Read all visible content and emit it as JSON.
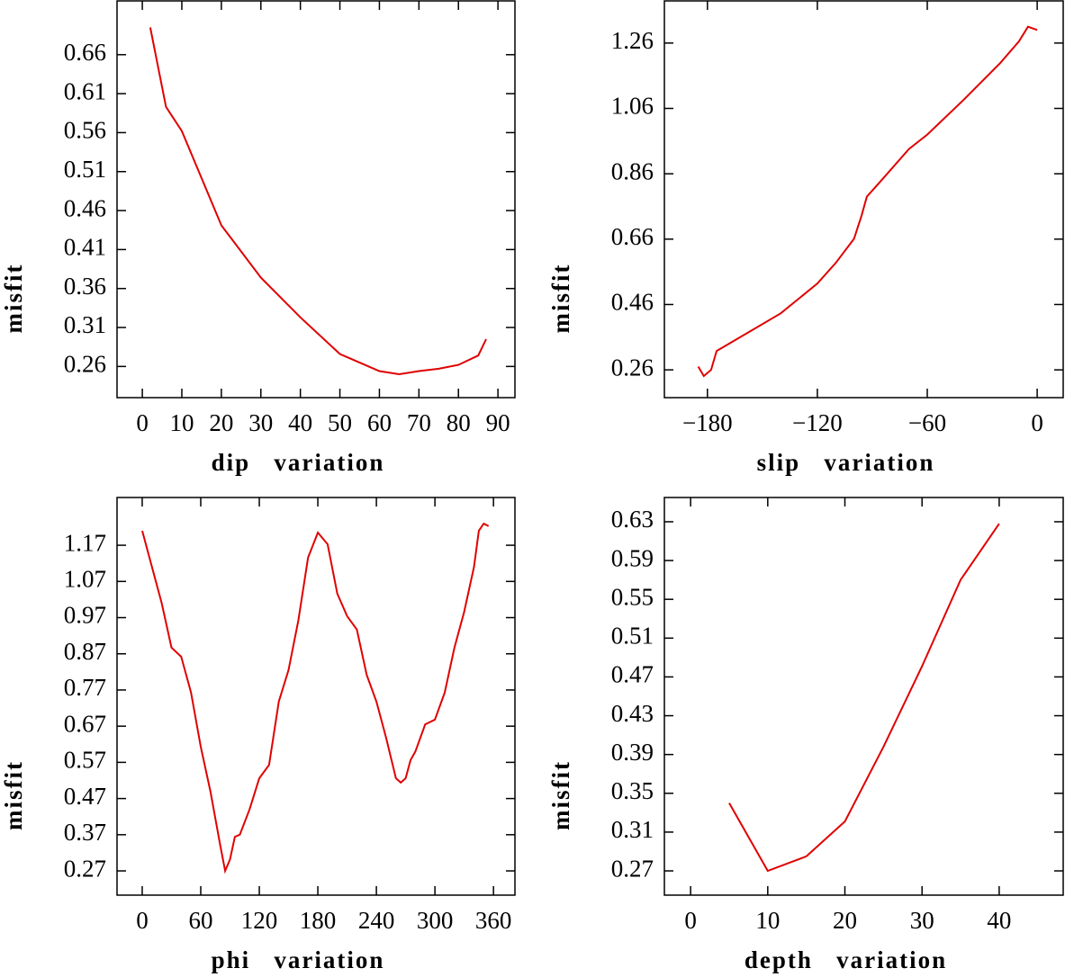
{
  "chart_data": [
    {
      "type": "line",
      "xlabel": "dip   variation",
      "ylabel": "misfit",
      "color": "#e00000",
      "x": [
        2,
        6,
        10,
        20,
        30,
        40,
        50,
        60,
        65,
        70,
        75,
        80,
        85,
        87
      ],
      "values": [
        0.695,
        0.593,
        0.562,
        0.441,
        0.374,
        0.323,
        0.276,
        0.254,
        0.25,
        0.254,
        0.257,
        0.262,
        0.274,
        0.295
      ],
      "xlim": [
        -6.4,
        94.3
      ],
      "ylim": [
        0.22,
        0.729
      ],
      "xticks": [
        0,
        10,
        20,
        30,
        40,
        50,
        60,
        70,
        80,
        90
      ],
      "yticks": [
        0.26,
        0.31,
        0.36,
        0.41,
        0.46,
        0.51,
        0.56,
        0.61,
        0.66
      ]
    },
    {
      "type": "line",
      "xlabel": "slip   variation",
      "ylabel": "misfit",
      "color": "#e00000",
      "x": [
        -185,
        -182,
        -178,
        -175,
        -160,
        -140,
        -120,
        -110,
        -100,
        -96,
        -93,
        -85,
        -70,
        -60,
        -40,
        -20,
        -10,
        -5,
        0
      ],
      "values": [
        0.27,
        0.241,
        0.26,
        0.318,
        0.367,
        0.433,
        0.524,
        0.587,
        0.661,
        0.73,
        0.79,
        0.84,
        0.936,
        0.98,
        1.087,
        1.2,
        1.265,
        1.31,
        1.3
      ],
      "xlim": [
        -203.5,
        14.2
      ],
      "ylim": [
        0.175,
        1.389
      ],
      "xticks": [
        {
          "value": -180,
          "label": "−180"
        },
        {
          "value": -120,
          "label": "−120"
        },
        {
          "value": -60,
          "label": "−60"
        },
        0
      ],
      "yticks": [
        0.26,
        0.46,
        0.66,
        0.86,
        1.06,
        1.26
      ]
    },
    {
      "type": "line",
      "xlabel": "phi   variation",
      "ylabel": "misfit",
      "color": "#e00000",
      "x": [
        0,
        10,
        20,
        30,
        40,
        50,
        60,
        70,
        80,
        85,
        90,
        95,
        100,
        110,
        120,
        130,
        140,
        150,
        160,
        170,
        180,
        190,
        200,
        210,
        220,
        230,
        240,
        250,
        260,
        265,
        270,
        275,
        280,
        290,
        300,
        310,
        320,
        330,
        340,
        345,
        350,
        355
      ],
      "values": [
        1.21,
        1.11,
        1.01,
        0.887,
        0.862,
        0.763,
        0.613,
        0.489,
        0.34,
        0.27,
        0.302,
        0.364,
        0.37,
        0.44,
        0.526,
        0.563,
        0.738,
        0.825,
        0.962,
        1.136,
        1.205,
        1.173,
        1.036,
        0.974,
        0.937,
        0.812,
        0.738,
        0.638,
        0.526,
        0.514,
        0.526,
        0.576,
        0.6,
        0.675,
        0.688,
        0.763,
        0.887,
        0.986,
        1.11,
        1.21,
        1.23,
        1.223
      ],
      "xlim": [
        -25.8,
        382
      ],
      "ylim": [
        0.203,
        1.302
      ],
      "xticks": [
        0,
        60,
        120,
        180,
        240,
        300,
        360
      ],
      "yticks": [
        0.27,
        0.37,
        0.47,
        0.57,
        0.67,
        0.77,
        0.87,
        0.97,
        1.07,
        1.17
      ]
    },
    {
      "type": "line",
      "xlabel": "depth   variation",
      "ylabel": "misfit",
      "color": "#e00000",
      "x": [
        5,
        10,
        15,
        20,
        25,
        30,
        35,
        40
      ],
      "values": [
        0.34,
        0.27,
        0.285,
        0.321,
        0.398,
        0.481,
        0.57,
        0.628
      ],
      "xlim": [
        -3.4,
        48.3
      ],
      "ylim": [
        0.245,
        0.655
      ],
      "xticks": [
        0,
        10,
        20,
        30,
        40
      ],
      "yticks": [
        0.27,
        0.31,
        0.35,
        0.39,
        0.43,
        0.47,
        0.51,
        0.55,
        0.59,
        0.63
      ]
    }
  ]
}
